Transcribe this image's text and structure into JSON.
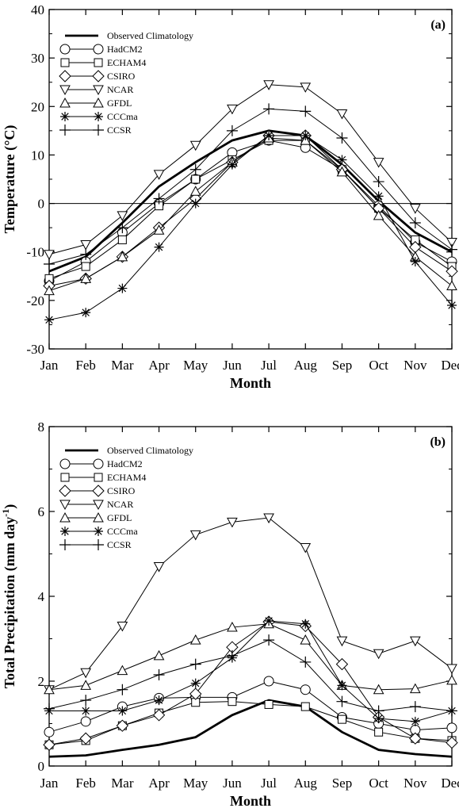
{
  "chart_data": [
    {
      "type": "line",
      "panel_label": "(a)",
      "xlabel": "Month",
      "ylabel": "Temperature (°C)",
      "categories": [
        "Jan",
        "Feb",
        "Mar",
        "Apr",
        "May",
        "Jun",
        "Jul",
        "Aug",
        "Sep",
        "Oct",
        "Nov",
        "Dec"
      ],
      "ylim": [
        -30,
        40
      ],
      "yticks": [
        -30,
        -20,
        -10,
        0,
        10,
        20,
        30,
        40
      ],
      "zero_line": true,
      "legend_position": "top-left",
      "series": [
        {
          "name": "Observed Climatology",
          "marker": "none",
          "thick": true,
          "values": [
            -14,
            -11,
            -4,
            3.5,
            8.5,
            13,
            15,
            14,
            8,
            0.5,
            -6,
            -10
          ]
        },
        {
          "name": "HadCM2",
          "marker": "circle",
          "values": [
            -16,
            -12,
            -6,
            0,
            5,
            10.5,
            13,
            11.5,
            7,
            -0.5,
            -8,
            -12
          ]
        },
        {
          "name": "ECHAM4",
          "marker": "square",
          "values": [
            -15.5,
            -13,
            -7.5,
            -0.5,
            5,
            9,
            13,
            13,
            7,
            -1,
            -7.5,
            -13
          ]
        },
        {
          "name": "CSIRO",
          "marker": "diamond",
          "values": [
            -17,
            -15.5,
            -11,
            -5,
            1,
            8.5,
            14,
            14,
            7,
            -1,
            -9,
            -14
          ]
        },
        {
          "name": "NCAR",
          "marker": "triangle-down",
          "values": [
            -10.5,
            -8.5,
            -2.5,
            6,
            12,
            19.5,
            24.5,
            24,
            18.5,
            8.5,
            -1,
            -8
          ]
        },
        {
          "name": "GFDL",
          "marker": "triangle-up",
          "values": [
            -18,
            -15.5,
            -11,
            -5.5,
            2.5,
            8.5,
            13.5,
            13,
            6.5,
            -2.5,
            -11,
            -17
          ]
        },
        {
          "name": "CCCma",
          "marker": "asterisk",
          "values": [
            -24,
            -22.5,
            -17.5,
            -9,
            0,
            8,
            14,
            14,
            9,
            1.5,
            -12,
            -21
          ]
        },
        {
          "name": "CCSR",
          "marker": "plus",
          "values": [
            -12.5,
            -10.5,
            -5,
            1,
            7,
            15,
            19.5,
            19,
            13.5,
            4.5,
            -4,
            -9.5
          ]
        }
      ]
    },
    {
      "type": "line",
      "panel_label": "(b)",
      "xlabel": "Month",
      "ylabel": "Total Precipitation (mm day",
      "ylabel_sup": "-1",
      "ylabel_end": ")",
      "categories": [
        "Jan",
        "Feb",
        "Mar",
        "Apr",
        "May",
        "Jun",
        "Jul",
        "Aug",
        "Sep",
        "Oct",
        "Nov",
        "Dec"
      ],
      "ylim": [
        0,
        8
      ],
      "yticks": [
        0,
        2,
        4,
        6,
        8
      ],
      "zero_line": false,
      "legend_position": "top-left",
      "series": [
        {
          "name": "Observed Climatology",
          "marker": "none",
          "thick": true,
          "values": [
            0.22,
            0.25,
            0.38,
            0.5,
            0.68,
            1.2,
            1.55,
            1.4,
            0.8,
            0.38,
            0.28,
            0.22
          ]
        },
        {
          "name": "HadCM2",
          "marker": "circle",
          "values": [
            0.8,
            1.05,
            1.4,
            1.6,
            1.62,
            1.62,
            2.0,
            1.8,
            1.15,
            1.0,
            0.85,
            0.9
          ]
        },
        {
          "name": "ECHAM4",
          "marker": "square",
          "values": [
            0.5,
            0.6,
            0.95,
            1.25,
            1.5,
            1.52,
            1.45,
            1.4,
            1.1,
            0.8,
            0.65,
            0.6
          ]
        },
        {
          "name": "CSIRO",
          "marker": "diamond",
          "values": [
            0.5,
            0.65,
            0.95,
            1.2,
            1.7,
            2.8,
            3.4,
            3.3,
            2.4,
            1.15,
            0.65,
            0.55
          ]
        },
        {
          "name": "NCAR",
          "marker": "triangle-down",
          "values": [
            1.8,
            2.2,
            3.3,
            4.7,
            5.45,
            5.75,
            5.85,
            5.15,
            2.95,
            2.65,
            2.95,
            2.3
          ]
        },
        {
          "name": "GFDL",
          "marker": "triangle-up",
          "values": [
            1.8,
            1.9,
            2.25,
            2.6,
            2.97,
            3.27,
            3.35,
            2.97,
            1.9,
            1.8,
            1.82,
            2.02
          ]
        },
        {
          "name": "CCCma",
          "marker": "asterisk",
          "values": [
            1.3,
            1.3,
            1.3,
            1.55,
            1.95,
            2.55,
            3.42,
            3.35,
            1.9,
            1.12,
            1.05,
            1.3
          ]
        },
        {
          "name": "CCSR",
          "marker": "plus",
          "values": [
            1.35,
            1.55,
            1.8,
            2.15,
            2.4,
            2.6,
            2.97,
            2.45,
            1.52,
            1.3,
            1.4,
            1.3
          ]
        }
      ]
    }
  ]
}
